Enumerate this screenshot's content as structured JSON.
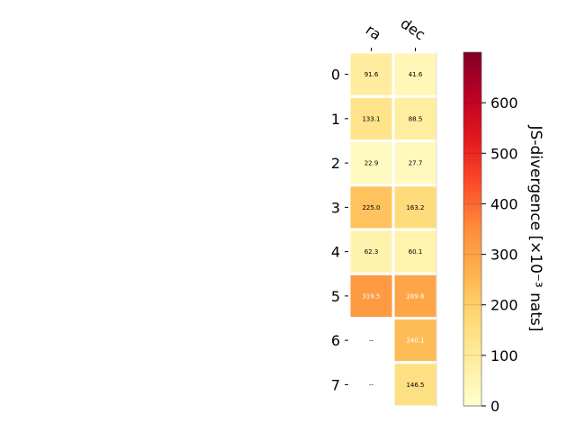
{
  "chart_data": {
    "type": "heatmap",
    "columns": [
      "ra",
      "dec"
    ],
    "rows": [
      "0",
      "1",
      "2",
      "3",
      "4",
      "5",
      "6",
      "7"
    ],
    "values": [
      [
        91.6,
        41.6
      ],
      [
        133.1,
        88.5
      ],
      [
        22.9,
        27.7
      ],
      [
        225.0,
        163.2
      ],
      [
        62.3,
        60.1
      ],
      [
        319.5,
        289.8
      ],
      [
        null,
        240.1
      ],
      [
        null,
        146.5
      ]
    ],
    "cell_labels": [
      [
        "91.6",
        "41.6"
      ],
      [
        "133.1",
        "88.5"
      ],
      [
        "22.9",
        "27.7"
      ],
      [
        "225.0",
        "163.2"
      ],
      [
        "62.3",
        "60.1"
      ],
      [
        "319.5",
        "289.8"
      ],
      [
        "--",
        "240.1"
      ],
      [
        "--",
        "146.5"
      ]
    ],
    "colorbar": {
      "label": "JS-divergence [×10⁻³ nats]",
      "min": 0,
      "max": 700,
      "ticks": [
        0,
        100,
        200,
        300,
        400,
        500,
        600
      ],
      "tick_labels": [
        "0",
        "100",
        "200",
        "300",
        "400",
        "500",
        "600"
      ],
      "colormap": "YlOrRd"
    },
    "missing_color": "#ffffff"
  }
}
